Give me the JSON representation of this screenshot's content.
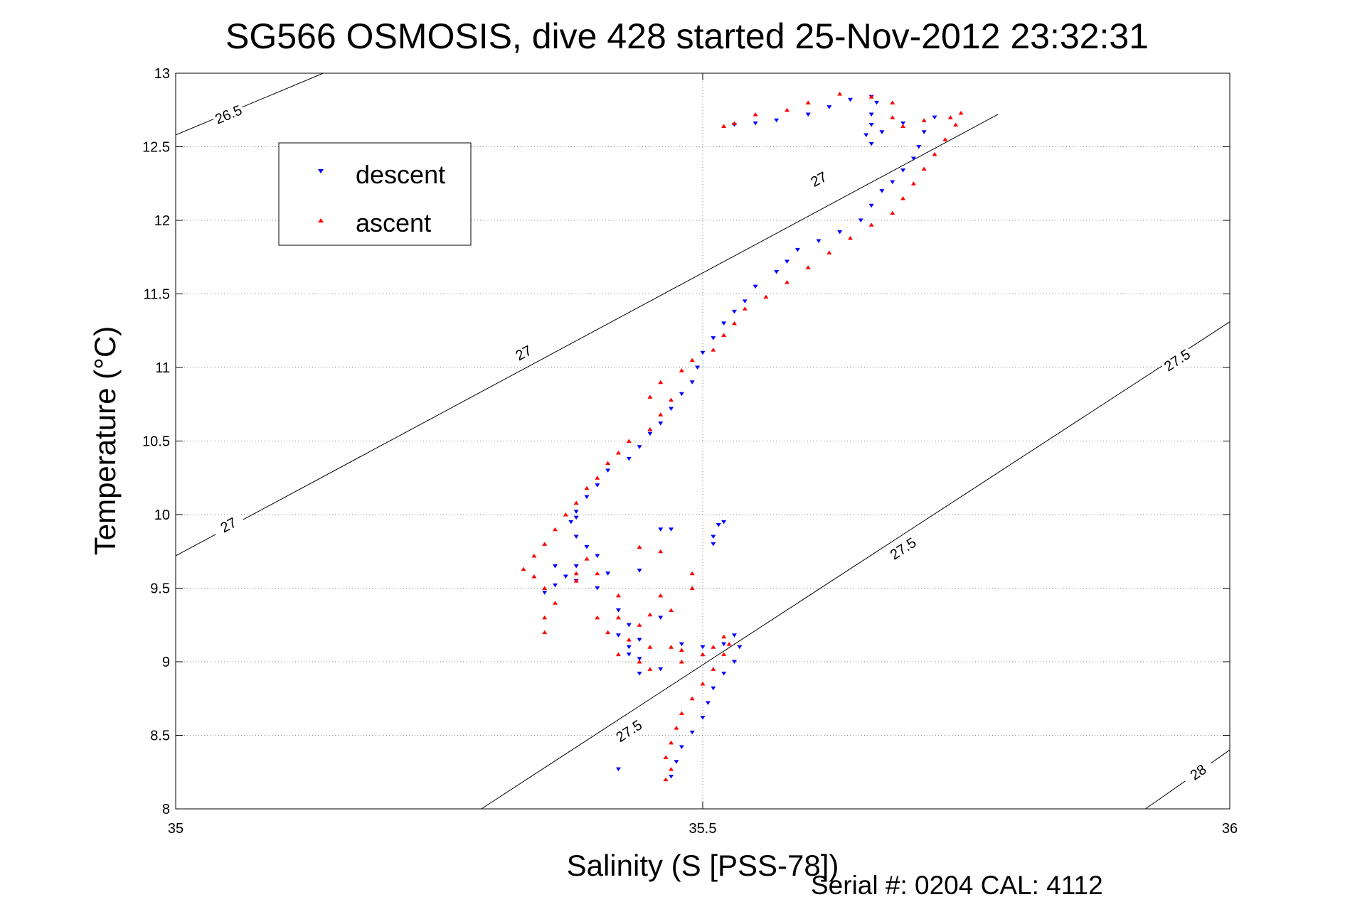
{
  "chart_data": {
    "type": "scatter",
    "title": "SG566 OSMOSIS, dive 428 started 25-Nov-2012 23:32:31",
    "xlabel": "Salinity (S [PSS-78])",
    "ylabel": "Temperature (°C)",
    "xlim": [
      35,
      36
    ],
    "ylim": [
      8,
      13
    ],
    "xticks": [
      35,
      35.5,
      36
    ],
    "xtick_labels": [
      "35",
      "35.5",
      "36"
    ],
    "yticks": [
      8,
      8.5,
      9,
      9.5,
      10,
      10.5,
      11,
      11.5,
      12,
      12.5,
      13
    ],
    "ytick_labels": [
      "8",
      "8.5",
      "9",
      "9.5",
      "10",
      "10.5",
      "11",
      "11.5",
      "12",
      "12.5",
      "13"
    ],
    "grid": true,
    "legend_position": "upper-left",
    "footer": "Serial #: 0204  CAL: 4112",
    "contours": [
      {
        "level": "26.5",
        "points": [
          [
            35,
            12.58
          ],
          [
            35.14,
            13.0
          ]
        ],
        "labels": [
          {
            "x": 35.05,
            "y": 12.72
          }
        ]
      },
      {
        "level": "27",
        "points": [
          [
            35,
            9.72
          ],
          [
            35.78,
            12.72
          ],
          [
            35.78,
            12.72
          ],
          [
            35.78,
            12.72
          ],
          [
            35.78,
            12.72
          ]
        ],
        "labels": [
          {
            "x": 35.05,
            "y": 9.93
          },
          {
            "x": 35.33,
            "y": 11.1
          },
          {
            "x": 35.61,
            "y": 12.28
          }
        ]
      },
      {
        "level": "27.5",
        "points": [
          [
            35.29,
            8.0
          ],
          [
            36,
            11.31
          ]
        ],
        "labels": [
          {
            "x": 35.43,
            "y": 8.53
          },
          {
            "x": 35.69,
            "y": 9.77
          },
          {
            "x": 35.95,
            "y": 11.05
          }
        ]
      },
      {
        "level": "28",
        "points": [
          [
            35.92,
            8.0
          ],
          [
            36,
            8.4
          ]
        ],
        "labels": [
          {
            "x": 35.97,
            "y": 8.25
          }
        ]
      }
    ],
    "series": [
      {
        "name": "descent",
        "color": "#0000ff",
        "marker": "triangle-down",
        "points": [
          [
            35.53,
            12.65
          ],
          [
            35.55,
            12.66
          ],
          [
            35.57,
            12.68
          ],
          [
            35.6,
            12.72
          ],
          [
            35.62,
            12.77
          ],
          [
            35.64,
            12.82
          ],
          [
            35.66,
            12.84
          ],
          [
            35.665,
            12.8
          ],
          [
            35.66,
            12.72
          ],
          [
            35.66,
            12.65
          ],
          [
            35.655,
            12.58
          ],
          [
            35.66,
            12.52
          ],
          [
            35.67,
            12.6
          ],
          [
            35.69,
            12.66
          ],
          [
            35.72,
            12.7
          ],
          [
            35.71,
            12.6
          ],
          [
            35.705,
            12.5
          ],
          [
            35.7,
            12.42
          ],
          [
            35.69,
            12.34
          ],
          [
            35.68,
            12.26
          ],
          [
            35.67,
            12.2
          ],
          [
            35.66,
            12.1
          ],
          [
            35.65,
            12.0
          ],
          [
            35.63,
            11.92
          ],
          [
            35.61,
            11.86
          ],
          [
            35.59,
            11.8
          ],
          [
            35.58,
            11.72
          ],
          [
            35.57,
            11.65
          ],
          [
            35.55,
            11.55
          ],
          [
            35.54,
            11.45
          ],
          [
            35.53,
            11.38
          ],
          [
            35.52,
            11.3
          ],
          [
            35.51,
            11.2
          ],
          [
            35.5,
            11.1
          ],
          [
            35.495,
            11.0
          ],
          [
            35.49,
            10.9
          ],
          [
            35.48,
            10.82
          ],
          [
            35.47,
            10.72
          ],
          [
            35.46,
            10.62
          ],
          [
            35.45,
            10.55
          ],
          [
            35.44,
            10.46
          ],
          [
            35.43,
            10.38
          ],
          [
            35.41,
            10.3
          ],
          [
            35.4,
            10.2
          ],
          [
            35.39,
            10.12
          ],
          [
            35.38,
            10.02
          ],
          [
            35.375,
            9.95
          ],
          [
            35.38,
            9.85
          ],
          [
            35.39,
            9.78
          ],
          [
            35.4,
            9.72
          ],
          [
            35.38,
            9.65
          ],
          [
            35.37,
            9.58
          ],
          [
            35.36,
            9.52
          ],
          [
            35.35,
            9.47
          ],
          [
            35.38,
            9.55
          ],
          [
            35.41,
            9.6
          ],
          [
            35.44,
            9.62
          ],
          [
            35.4,
            9.5
          ],
          [
            35.42,
            9.35
          ],
          [
            35.43,
            9.25
          ],
          [
            35.42,
            9.18
          ],
          [
            35.43,
            9.1
          ],
          [
            35.44,
            9.02
          ],
          [
            35.46,
            8.95
          ],
          [
            35.44,
            8.92
          ],
          [
            35.43,
            9.05
          ],
          [
            35.44,
            9.15
          ],
          [
            35.46,
            9.3
          ],
          [
            35.48,
            9.12
          ],
          [
            35.5,
            9.1
          ],
          [
            35.52,
            9.12
          ],
          [
            35.53,
            9.18
          ],
          [
            35.535,
            9.1
          ],
          [
            35.53,
            9.0
          ],
          [
            35.52,
            8.92
          ],
          [
            35.51,
            8.82
          ],
          [
            35.505,
            8.72
          ],
          [
            35.5,
            8.62
          ],
          [
            35.49,
            8.52
          ],
          [
            35.48,
            8.42
          ],
          [
            35.475,
            8.32
          ],
          [
            35.47,
            8.22
          ],
          [
            35.51,
            9.85
          ],
          [
            35.515,
            9.93
          ],
          [
            35.52,
            9.95
          ],
          [
            35.51,
            9.8
          ],
          [
            35.47,
            9.9
          ],
          [
            35.46,
            9.9
          ],
          [
            35.42,
            8.27
          ],
          [
            35.38,
            9.98
          ],
          [
            35.36,
            9.65
          ]
        ]
      },
      {
        "name": "ascent",
        "color": "#ff0000",
        "marker": "triangle-up",
        "points": [
          [
            35.465,
            8.2
          ],
          [
            35.47,
            8.27
          ],
          [
            35.465,
            8.35
          ],
          [
            35.47,
            8.45
          ],
          [
            35.475,
            8.55
          ],
          [
            35.48,
            8.65
          ],
          [
            35.49,
            8.75
          ],
          [
            35.5,
            8.85
          ],
          [
            35.51,
            8.95
          ],
          [
            35.52,
            9.05
          ],
          [
            35.525,
            9.12
          ],
          [
            35.52,
            9.17
          ],
          [
            35.51,
            9.1
          ],
          [
            35.5,
            9.05
          ],
          [
            35.48,
            9.08
          ],
          [
            35.45,
            9.1
          ],
          [
            35.43,
            9.15
          ],
          [
            35.44,
            9.25
          ],
          [
            35.45,
            9.32
          ],
          [
            35.42,
            9.3
          ],
          [
            35.41,
            9.2
          ],
          [
            35.42,
            9.05
          ],
          [
            35.44,
            9.0
          ],
          [
            35.45,
            8.95
          ],
          [
            35.47,
            9.1
          ],
          [
            35.4,
            9.3
          ],
          [
            35.36,
            9.4
          ],
          [
            35.35,
            9.5
          ],
          [
            35.34,
            9.58
          ],
          [
            35.33,
            9.63
          ],
          [
            35.34,
            9.72
          ],
          [
            35.35,
            9.8
          ],
          [
            35.36,
            9.9
          ],
          [
            35.37,
            10.0
          ],
          [
            35.38,
            10.08
          ],
          [
            35.39,
            10.18
          ],
          [
            35.4,
            10.25
          ],
          [
            35.41,
            10.35
          ],
          [
            35.42,
            10.42
          ],
          [
            35.43,
            10.5
          ],
          [
            35.45,
            10.58
          ],
          [
            35.46,
            10.68
          ],
          [
            35.47,
            10.78
          ],
          [
            35.45,
            10.8
          ],
          [
            35.46,
            10.9
          ],
          [
            35.48,
            10.98
          ],
          [
            35.49,
            11.05
          ],
          [
            35.51,
            11.12
          ],
          [
            35.52,
            11.22
          ],
          [
            35.53,
            11.3
          ],
          [
            35.54,
            11.4
          ],
          [
            35.56,
            11.48
          ],
          [
            35.58,
            11.58
          ],
          [
            35.6,
            11.68
          ],
          [
            35.62,
            11.78
          ],
          [
            35.64,
            11.88
          ],
          [
            35.66,
            11.97
          ],
          [
            35.68,
            12.05
          ],
          [
            35.69,
            12.15
          ],
          [
            35.7,
            12.25
          ],
          [
            35.71,
            12.35
          ],
          [
            35.72,
            12.45
          ],
          [
            35.73,
            12.55
          ],
          [
            35.74,
            12.65
          ],
          [
            35.745,
            12.73
          ],
          [
            35.735,
            12.7
          ],
          [
            35.71,
            12.68
          ],
          [
            35.69,
            12.64
          ],
          [
            35.68,
            12.7
          ],
          [
            35.68,
            12.8
          ],
          [
            35.66,
            12.84
          ],
          [
            35.63,
            12.86
          ],
          [
            35.6,
            12.8
          ],
          [
            35.58,
            12.75
          ],
          [
            35.55,
            12.72
          ],
          [
            35.53,
            12.66
          ],
          [
            35.52,
            12.64
          ],
          [
            35.4,
            9.6
          ],
          [
            35.42,
            9.45
          ],
          [
            35.38,
            9.55
          ],
          [
            35.35,
            9.3
          ],
          [
            35.35,
            9.2
          ],
          [
            35.46,
            9.45
          ],
          [
            35.47,
            9.35
          ],
          [
            35.49,
            9.5
          ],
          [
            35.49,
            9.6
          ],
          [
            35.46,
            9.75
          ],
          [
            35.44,
            9.78
          ],
          [
            35.39,
            9.7
          ],
          [
            35.38,
            9.6
          ],
          [
            35.5,
            9.05
          ],
          [
            35.48,
            9.0
          ]
        ]
      }
    ]
  }
}
